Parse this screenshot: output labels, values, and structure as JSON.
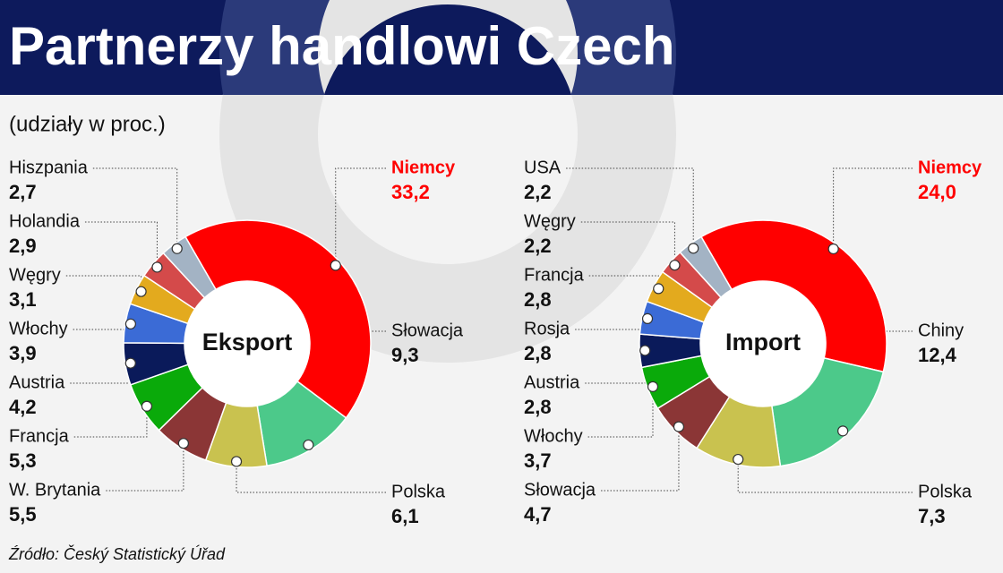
{
  "title": "Partnerzy handlowi Czech",
  "subtitle": "(udziały w proc.)",
  "source": "Źródło: Český Statistický Úřad",
  "chart_data": [
    {
      "type": "pie",
      "title": "Eksport",
      "categories": [
        "Niemcy",
        "Słowacja",
        "Polska",
        "W. Brytania",
        "Francja",
        "Austria",
        "Włochy",
        "Węgry",
        "Holandia",
        "Hiszpania"
      ],
      "values": [
        33.2,
        9.3,
        6.1,
        5.5,
        5.3,
        4.2,
        3.9,
        3.1,
        2.9,
        2.7
      ],
      "value_labels": [
        "33,2",
        "9,3",
        "6,1",
        "5,5",
        "5,3",
        "4,2",
        "3,9",
        "3,1",
        "2,9",
        "2,7"
      ],
      "colors": [
        "#ff0000",
        "#4cc98a",
        "#c9c24f",
        "#8b3636",
        "#0aaa0a",
        "#0a1a5a",
        "#3b6bd6",
        "#e3aa1e",
        "#d44a4a",
        "#a3b3c4"
      ]
    },
    {
      "type": "pie",
      "title": "Import",
      "categories": [
        "Niemcy",
        "Chiny",
        "Polska",
        "Słowacja",
        "Włochy",
        "Austria",
        "Rosja",
        "Francja",
        "Węgry",
        "USA"
      ],
      "values": [
        24.0,
        12.4,
        7.3,
        4.7,
        3.7,
        2.8,
        2.8,
        2.8,
        2.2,
        2.2
      ],
      "value_labels": [
        "24,0",
        "12,4",
        "7,3",
        "4,7",
        "3,7",
        "2,8",
        "2,8",
        "2,8",
        "2,2",
        "2,2"
      ],
      "colors": [
        "#ff0000",
        "#4cc98a",
        "#c9c24f",
        "#8b3636",
        "#0aaa0a",
        "#0a1a5a",
        "#3b6bd6",
        "#e3aa1e",
        "#d44a4a",
        "#a3b3c4"
      ]
    }
  ]
}
